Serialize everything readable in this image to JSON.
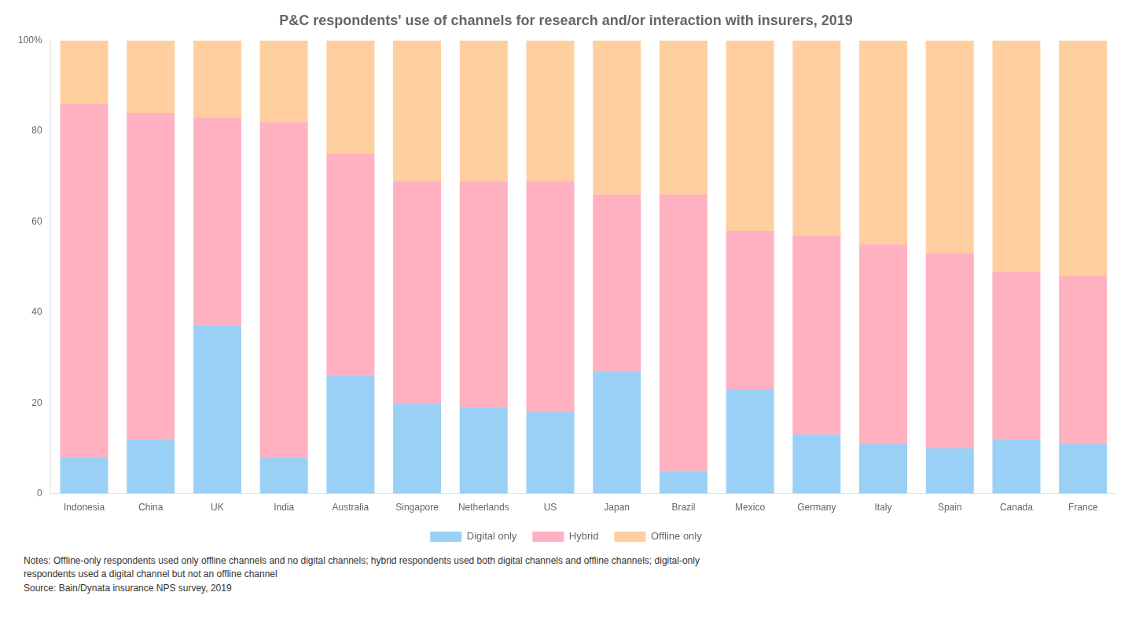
{
  "chart_data": {
    "type": "bar",
    "stacked": true,
    "title": "P&C respondents' use of channels for research and/or interaction with insurers, 2019",
    "categories": [
      "Indonesia",
      "China",
      "UK",
      "India",
      "Australia",
      "Singapore",
      "Netherlands",
      "US",
      "Japan",
      "Brazil",
      "Mexico",
      "Germany",
      "Italy",
      "Spain",
      "Canada",
      "France"
    ],
    "series": [
      {
        "name": "Digital only",
        "values": [
          8,
          12,
          37,
          8,
          26,
          20,
          19,
          18,
          27,
          5,
          23,
          13,
          11,
          10,
          12,
          11
        ]
      },
      {
        "name": "Hybrid",
        "values": [
          78,
          72,
          46,
          74,
          49,
          49,
          50,
          51,
          39,
          61,
          35,
          44,
          44,
          43,
          37,
          37
        ]
      },
      {
        "name": "Offline only",
        "values": [
          14,
          16,
          17,
          18,
          25,
          31,
          31,
          31,
          34,
          34,
          42,
          43,
          45,
          47,
          51,
          52
        ]
      }
    ],
    "ylim": [
      0,
      100
    ],
    "yticks": [
      0,
      20,
      40,
      60,
      80,
      {
        "value": 100,
        "label": "100%"
      }
    ],
    "grid": false,
    "legend": "bottom",
    "annotations": [
      "Notes: Offline-only respondents used only offline channels and no digital channels; hybrid respondents used both digital channels and offline channels; digital-only",
      "respondents used a digital channel but not an offline channel",
      "Source: Bain/Dynata insurance NPS survey, 2019"
    ]
  }
}
